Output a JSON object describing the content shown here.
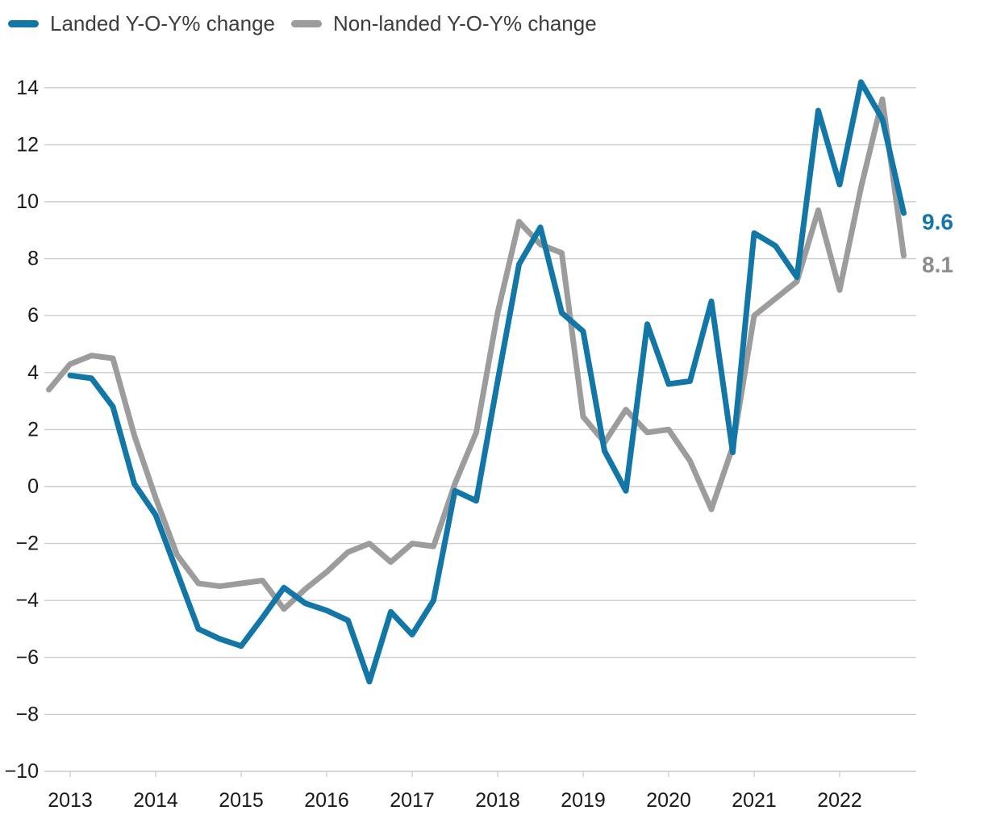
{
  "legend": {
    "items": [
      {
        "label": "Landed Y-O-Y% change",
        "color": "#1276a6"
      },
      {
        "label": "Non-landed Y-O-Y% change",
        "color": "#9c9c9c"
      }
    ]
  },
  "chart_data": {
    "type": "line",
    "title": "",
    "xlabel": "",
    "ylabel": "",
    "ylim": [
      -10,
      14
    ],
    "grid": true,
    "legend_position": "top-left",
    "y_ticks": [
      14,
      12,
      10,
      8,
      6,
      4,
      2,
      0,
      -2,
      -4,
      -6,
      -8,
      -10
    ],
    "x_tick_labels": [
      "2013",
      "2014",
      "2015",
      "2016",
      "2017",
      "2018",
      "2019",
      "2020",
      "2021",
      "2022"
    ],
    "frequency": "quarterly",
    "series": [
      {
        "name": "Landed Y-O-Y% change",
        "color": "#1276a6",
        "start_quarter": "2013Q1",
        "end_quarter": "2022Q4",
        "end_label": "9.6",
        "values": [
          3.9,
          3.8,
          2.8,
          0.1,
          -1.0,
          -3.0,
          -5.0,
          -5.35,
          -5.6,
          -4.6,
          -3.55,
          -4.1,
          -4.35,
          -4.7,
          -6.85,
          -4.4,
          -5.2,
          -4.0,
          -0.15,
          -0.5,
          3.7,
          7.8,
          9.1,
          6.1,
          5.45,
          1.25,
          -0.15,
          5.7,
          3.6,
          3.7,
          6.5,
          1.2,
          8.9,
          8.45,
          7.35,
          13.2,
          10.6,
          14.2,
          12.9,
          9.6
        ]
      },
      {
        "name": "Non-landed Y-O-Y% change",
        "color": "#9c9c9c",
        "start_quarter": "2012Q4",
        "end_quarter": "2022Q4",
        "end_label": "8.1",
        "values": [
          3.4,
          4.3,
          4.6,
          4.5,
          1.8,
          -0.4,
          -2.4,
          -3.4,
          -3.5,
          -3.4,
          -3.3,
          -4.3,
          -3.6,
          -3.0,
          -2.3,
          -2.0,
          -2.65,
          -2.0,
          -2.1,
          0.1,
          1.9,
          6.1,
          9.3,
          8.5,
          8.2,
          2.45,
          1.55,
          2.7,
          1.9,
          2.0,
          0.9,
          -0.8,
          1.4,
          6.0,
          6.6,
          7.2,
          9.7,
          6.9,
          10.5,
          13.6,
          8.1
        ]
      }
    ],
    "end_labels": [
      {
        "text": "9.6",
        "color": "#1276a6"
      },
      {
        "text": "8.1",
        "color": "#8c8c8c"
      }
    ],
    "colors": {
      "gridline": "#cccccc",
      "tick_text": "#1a1a1a",
      "legend_text": "#3d3d3d"
    }
  }
}
